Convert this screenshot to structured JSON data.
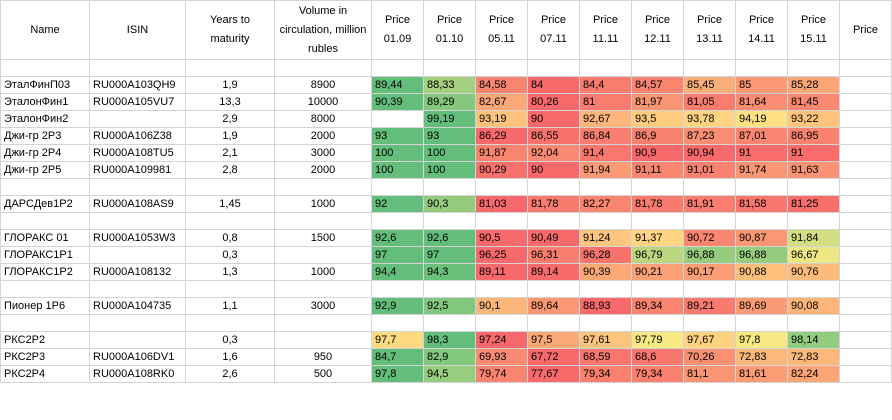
{
  "headers": {
    "name": "Name",
    "isin": "ISIN",
    "years": "Years to maturity",
    "volume": "Volume in circulation, million rubles",
    "prices": [
      "Price 01.09",
      "Price 01.10",
      "Price 05.11",
      "Price 07.11",
      "Price 11.11",
      "Price 12.11",
      "Price 13.11",
      "Price 14.11",
      "Price 15.11"
    ],
    "last": "Price"
  },
  "colors": {
    "red": "#f8696b",
    "yellow": "#ffeb84",
    "green": "#63be7b"
  },
  "groups": [
    {
      "rows": [
        {
          "name": "ЭталФинП03",
          "isin": "RU000A103QH9",
          "years": "1,9",
          "volume": "8900",
          "prices": [
            "89,44",
            "88,33",
            "84,58",
            "84",
            "84,4",
            "84,57",
            "85,45",
            "85",
            "85,28"
          ]
        },
        {
          "name": "ЭталонФин1",
          "isin": "RU000A105VU7",
          "years": "13,3",
          "volume": "10000",
          "prices": [
            "90,39",
            "89,29",
            "82,67",
            "80,26",
            "81",
            "81,97",
            "81,05",
            "81,64",
            "81,45"
          ]
        },
        {
          "name": "ЭталонФин2",
          "isin": "",
          "years": "2,9",
          "volume": "8000",
          "prices": [
            "",
            "99,19",
            "93,19",
            "90",
            "92,67",
            "93,5",
            "93,78",
            "94,19",
            "93,22"
          ]
        },
        {
          "name": "Джи-гр 2Р3",
          "isin": "RU000A106Z38",
          "years": "1,9",
          "volume": "2000",
          "prices": [
            "93",
            "93",
            "86,29",
            "86,55",
            "86,84",
            "86,9",
            "87,23",
            "87,01",
            "86,95"
          ]
        },
        {
          "name": "Джи-гр 2Р4",
          "isin": "RU000A108TU5",
          "years": "2,1",
          "volume": "3000",
          "prices": [
            "100",
            "100",
            "91,87",
            "92,04",
            "91,4",
            "90,9",
            "90,94",
            "91",
            "91"
          ]
        },
        {
          "name": "Джи-гр 2Р5",
          "isin": "RU000A109981",
          "years": "2,8",
          "volume": "2000",
          "prices": [
            "100",
            "100",
            "90,29",
            "90",
            "91,94",
            "91,11",
            "91,01",
            "91,74",
            "91,63"
          ]
        }
      ]
    },
    {
      "rows": [
        {
          "name": "ДАРСДев1Р2",
          "isin": "RU000A108AS9",
          "years": "1,45",
          "volume": "1000",
          "prices": [
            "92",
            "90,3",
            "81,03",
            "81,78",
            "82,27",
            "81,78",
            "81,91",
            "81,58",
            "81,25"
          ]
        }
      ]
    },
    {
      "rows": [
        {
          "name": "ГЛОРАКС 01",
          "isin": "RU000A1053W3",
          "years": "0,8",
          "volume": "1500",
          "prices": [
            "92,6",
            "92,6",
            "90,5",
            "90,49",
            "91,24",
            "91,37",
            "90,72",
            "90,87",
            "91,84"
          ]
        },
        {
          "name": "ГЛОРАКС1Р1",
          "isin": "",
          "years": "0,3",
          "volume": "",
          "prices": [
            "97",
            "97",
            "96,25",
            "96,31",
            "96,28",
            "96,79",
            "96,88",
            "96,88",
            "96,67"
          ]
        },
        {
          "name": "ГЛОРАКС1Р2",
          "isin": "RU000A108132",
          "years": "1,3",
          "volume": "1000",
          "prices": [
            "94,4",
            "94,3",
            "89,11",
            "89,14",
            "90,39",
            "90,21",
            "90,17",
            "90,88",
            "90,76"
          ]
        }
      ]
    },
    {
      "rows": [
        {
          "name": "Пионер 1Р6",
          "isin": "RU000A104735",
          "years": "1,1",
          "volume": "3000",
          "prices": [
            "92,9",
            "92,5",
            "90,1",
            "89,64",
            "88,93",
            "89,34",
            "89,21",
            "89,69",
            "90,08"
          ]
        }
      ]
    },
    {
      "rows": [
        {
          "name": "РКС2Р2",
          "isin": "",
          "years": "0,3",
          "volume": "",
          "prices": [
            "97,7",
            "98,3",
            "97,24",
            "97,5",
            "97,61",
            "97,79",
            "97,67",
            "97,8",
            "98,14"
          ]
        },
        {
          "name": "РКС2Р3",
          "isin": "RU000A106DV1",
          "years": "1,6",
          "volume": "950",
          "prices": [
            "84,7",
            "82,9",
            "69,93",
            "67,72",
            "68,59",
            "68,6",
            "70,26",
            "72,83",
            "72,83"
          ]
        },
        {
          "name": "РКС2Р4",
          "isin": "RU000A108RK0",
          "years": "2,6",
          "volume": "500",
          "prices": [
            "97,8",
            "94,5",
            "79,74",
            "77,67",
            "79,34",
            "79,34",
            "81,1",
            "81,61",
            "82,24"
          ]
        }
      ]
    }
  ]
}
